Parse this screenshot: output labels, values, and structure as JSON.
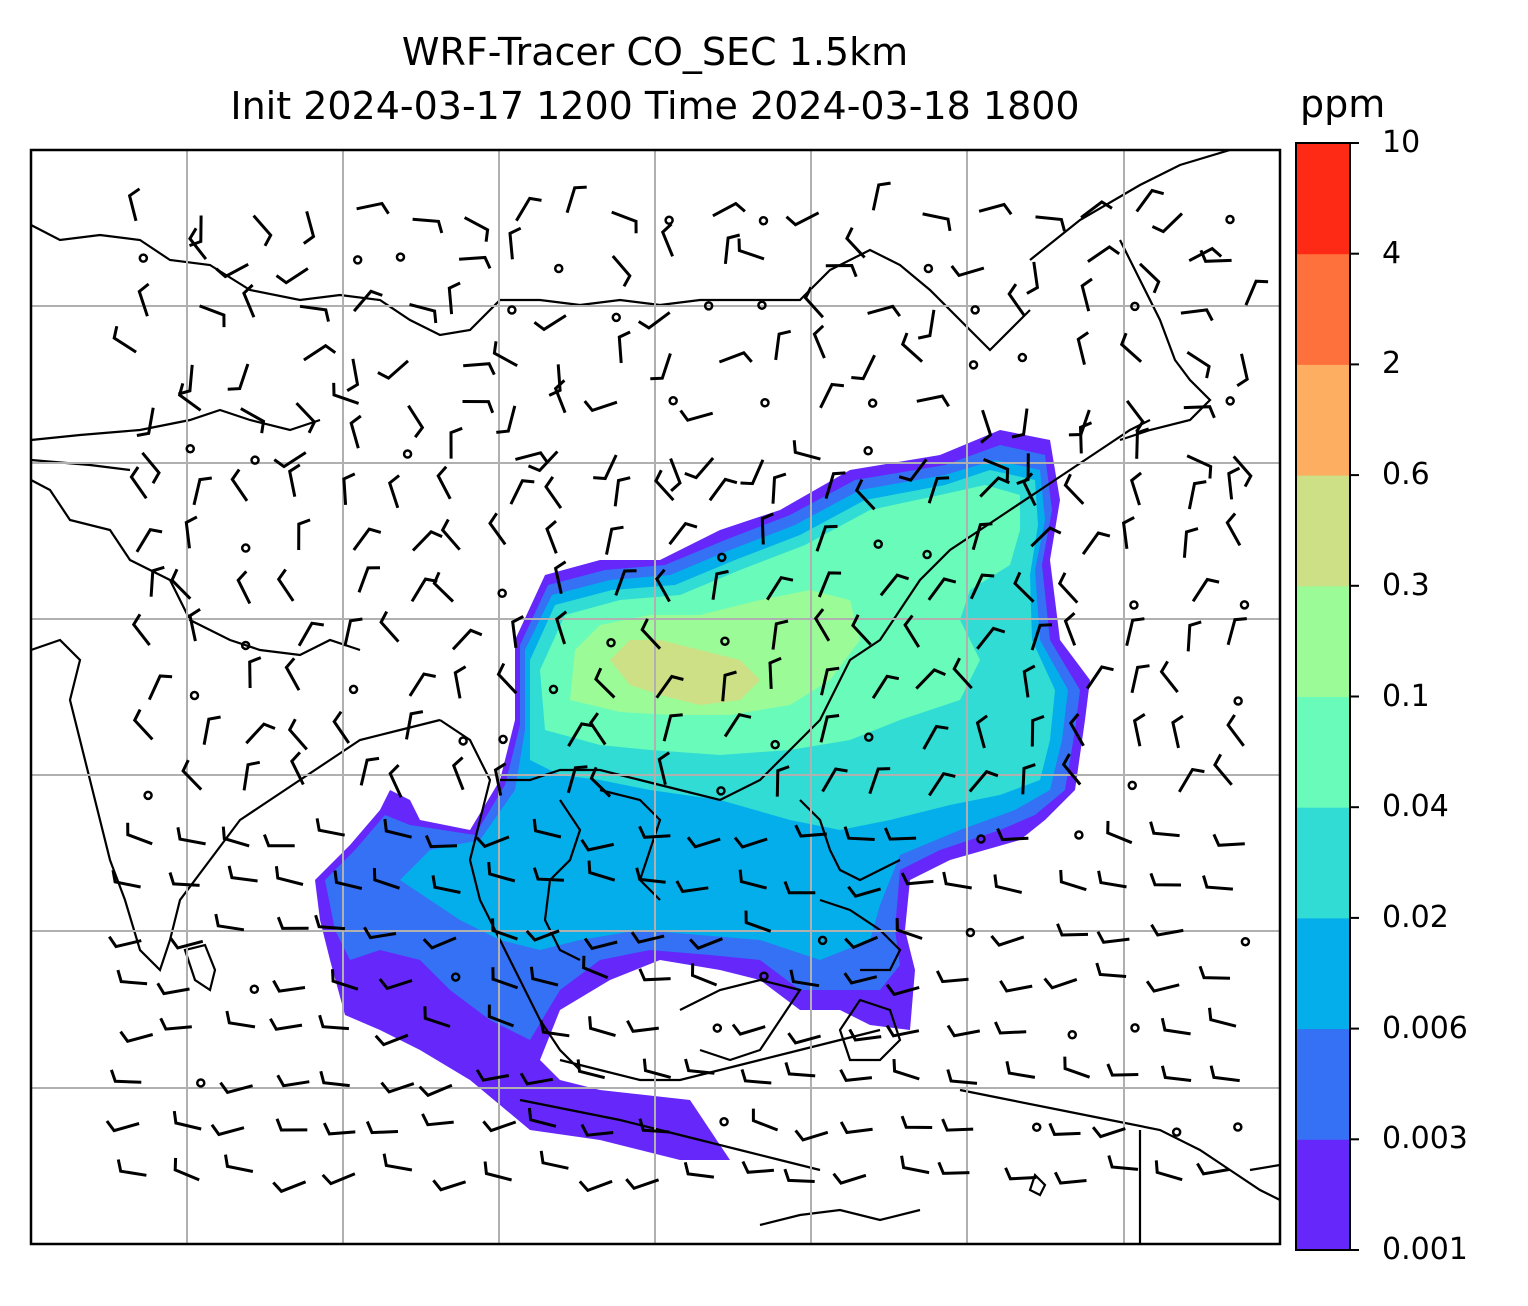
{
  "title": {
    "line1": "WRF-Tracer CO_SEC 1.5km",
    "line2": "Init 2024-03-17 1200 Time 2024-03-18 1800"
  },
  "colorbar": {
    "unit": "ppm",
    "levels": [
      "0.001",
      "0.003",
      "0.006",
      "0.02",
      "0.04",
      "0.1",
      "0.3",
      "0.6",
      "2",
      "4",
      "10"
    ],
    "colors": [
      "#6527fa",
      "#3471f4",
      "#04aeeb",
      "#30dcd4",
      "#69fbba",
      "#9bfb97",
      "#cde085",
      "#feae61",
      "#fe703c",
      "#fe2a16"
    ]
  },
  "map": {
    "gridlines": true,
    "coastlines": true,
    "wind_barbs": true,
    "tracer_field": "CO_SEC"
  }
}
